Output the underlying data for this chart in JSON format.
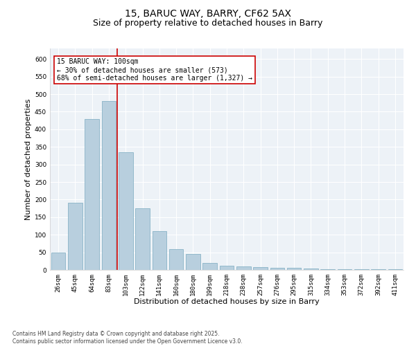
{
  "title_line1": "15, BARUC WAY, BARRY, CF62 5AX",
  "title_line2": "Size of property relative to detached houses in Barry",
  "xlabel": "Distribution of detached houses by size in Barry",
  "ylabel": "Number of detached properties",
  "bar_color": "#b8cfde",
  "bar_edge_color": "#7aaabf",
  "background_color": "#edf2f7",
  "grid_color": "#ffffff",
  "categories": [
    "26sqm",
    "45sqm",
    "64sqm",
    "83sqm",
    "103sqm",
    "122sqm",
    "141sqm",
    "160sqm",
    "180sqm",
    "199sqm",
    "218sqm",
    "238sqm",
    "257sqm",
    "276sqm",
    "295sqm",
    "315sqm",
    "334sqm",
    "353sqm",
    "372sqm",
    "392sqm",
    "411sqm"
  ],
  "values": [
    50,
    190,
    430,
    480,
    335,
    175,
    110,
    60,
    45,
    20,
    12,
    10,
    7,
    5,
    5,
    3,
    2,
    1,
    1,
    1,
    1
  ],
  "ylim": [
    0,
    630
  ],
  "yticks": [
    0,
    50,
    100,
    150,
    200,
    250,
    300,
    350,
    400,
    450,
    500,
    550,
    600
  ],
  "vline_color": "#cc0000",
  "annotation_text": "15 BARUC WAY: 100sqm\n← 30% of detached houses are smaller (573)\n68% of semi-detached houses are larger (1,327) →",
  "annotation_box_edge_color": "#cc0000",
  "footnote": "Contains HM Land Registry data © Crown copyright and database right 2025.\nContains public sector information licensed under the Open Government Licence v3.0.",
  "title_fontsize": 10,
  "subtitle_fontsize": 9,
  "axis_label_fontsize": 8,
  "tick_fontsize": 6.5,
  "annotation_fontsize": 7,
  "footnote_fontsize": 5.5
}
